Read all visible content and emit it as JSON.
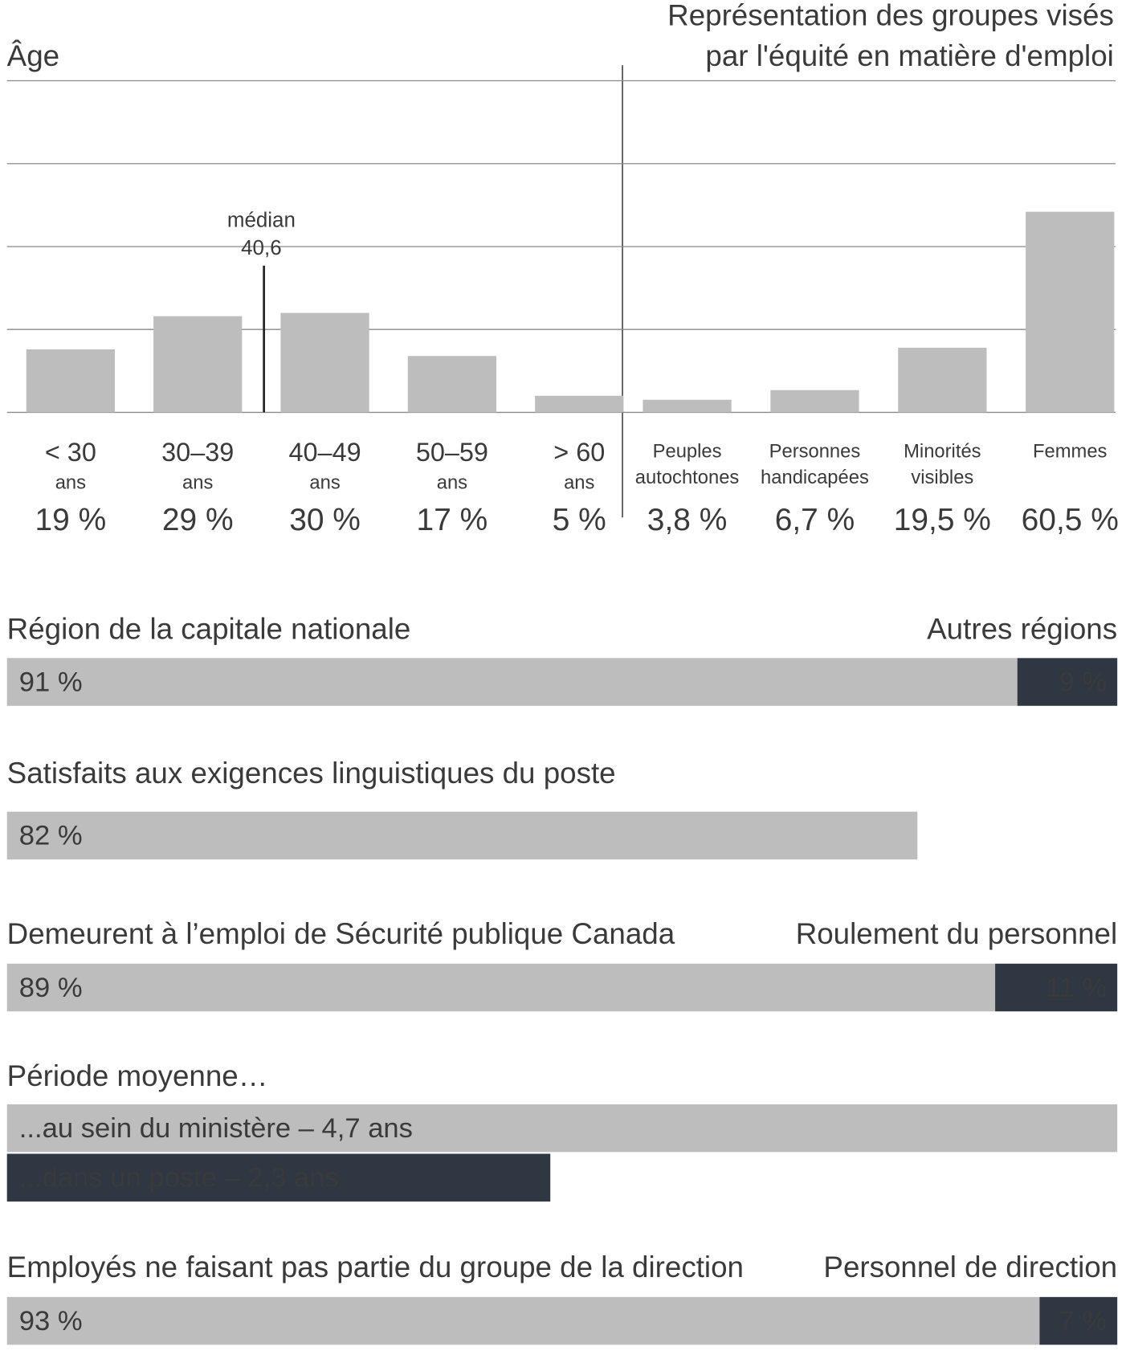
{
  "chart_data": [
    {
      "type": "column",
      "title": [
        "Âge"
      ],
      "categories": [
        [
          "< 30",
          "ans"
        ],
        [
          "30–39",
          "ans"
        ],
        [
          "40–49",
          "ans"
        ],
        [
          "50–59",
          "ans"
        ],
        [
          "> 60",
          "ans"
        ]
      ],
      "values": [
        19,
        29,
        30,
        17,
        5
      ],
      "value_labels": [
        "19 %",
        "29 %",
        "30 %",
        "17 %",
        "5 %"
      ],
      "color": "#bdbdbd",
      "ylim": [
        0,
        100
      ],
      "yticks": [
        0,
        25,
        50,
        75,
        100
      ],
      "grid": true,
      "annotation": [
        "médian",
        "40,6"
      ]
    },
    {
      "type": "column",
      "title": [
        "Représentation des groupes visés",
        "par l'équité en matière d'emploi"
      ],
      "categories": [
        [
          "Peuples",
          "autochtones"
        ],
        [
          "Personnes",
          "handicapées"
        ],
        [
          "Minorités",
          "visibles"
        ],
        [
          "Femmes"
        ]
      ],
      "values": [
        3.8,
        6.7,
        19.5,
        60.5
      ],
      "value_labels": [
        "3,8 %",
        "6,7 %",
        "19,5 %",
        "60,5 %"
      ],
      "color": "#bdbdbd",
      "ylim": [
        0,
        100
      ],
      "yticks": [
        0,
        25,
        50,
        75,
        100
      ],
      "grid": true
    },
    {
      "type": "stacked_bar",
      "xlim": [
        0,
        100
      ],
      "series": [
        {
          "name": "Région de la capitale nationale",
          "color": "#bdbdbd",
          "values": [
            91
          ],
          "value_labels": [
            "91 %"
          ]
        },
        {
          "name": "Autres régions",
          "color": "#2f3742",
          "values": [
            9
          ],
          "value_labels": [
            "9 %"
          ]
        }
      ]
    },
    {
      "type": "stacked_bar",
      "xlim": [
        0,
        100
      ],
      "series": [
        {
          "name": "Satisfaits aux exigences linguistiques du poste",
          "color": "#bdbdbd",
          "values": [
            82
          ],
          "value_labels": [
            "82 %"
          ]
        }
      ]
    },
    {
      "type": "stacked_bar",
      "xlim": [
        0,
        100
      ],
      "series": [
        {
          "name": "Demeurent à l’emploi de Sécurité publique Canada",
          "color": "#bdbdbd",
          "values": [
            89
          ],
          "value_labels": [
            "89 %"
          ]
        },
        {
          "name": "Roulement du personnel",
          "color": "#2f3742",
          "values": [
            11
          ],
          "value_labels": [
            "11 %"
          ]
        }
      ]
    },
    {
      "type": "hbar",
      "title": "Période moyenne…",
      "xlim": [
        0,
        4.7
      ],
      "categories": [
        "...au sein du ministère – 4,7 ans",
        "...dans un poste – 2,3 ans"
      ],
      "values": [
        4.7,
        2.3
      ],
      "colors": [
        "#bdbdbd",
        "#2f3742"
      ]
    },
    {
      "type": "stacked_bar",
      "xlim": [
        0,
        100
      ],
      "series": [
        {
          "name": "Employés ne faisant pas partie du groupe de la direction",
          "color": "#bdbdbd",
          "values": [
            93
          ],
          "value_labels": [
            "93 %"
          ]
        },
        {
          "name": "Personnel de direction",
          "color": "#2f3742",
          "values": [
            7
          ],
          "value_labels": [
            "7 %"
          ]
        }
      ]
    }
  ]
}
